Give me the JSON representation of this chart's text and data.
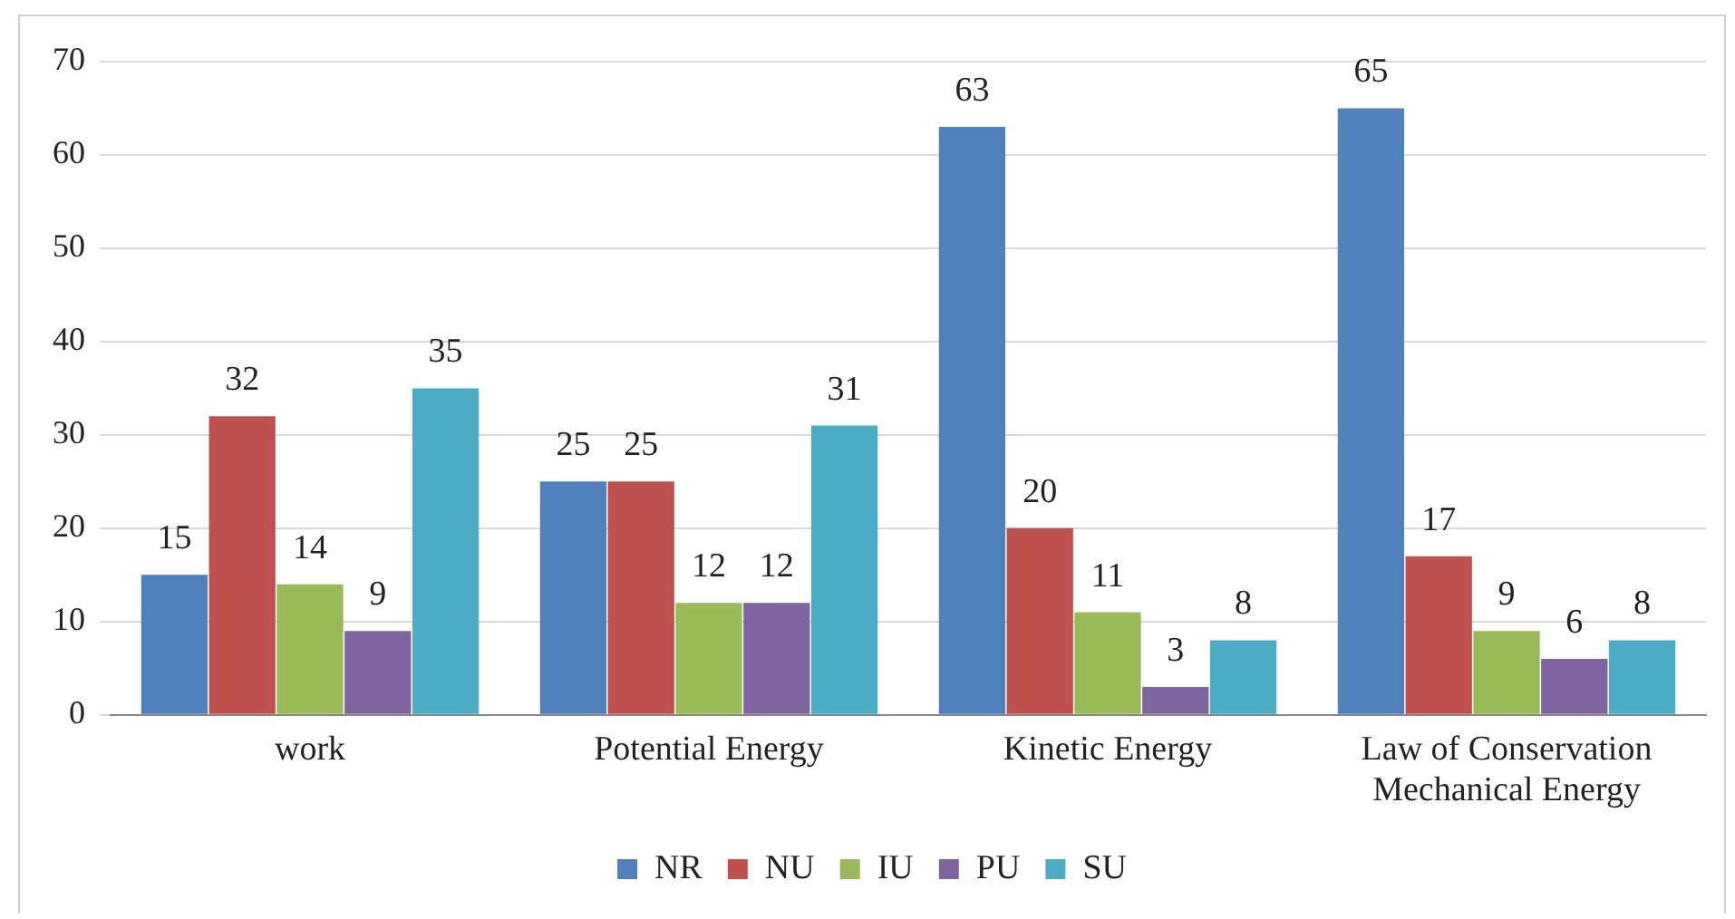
{
  "chart_data": {
    "type": "bar",
    "categories": [
      "work",
      "Potential Energy",
      "Kinetic Energy",
      "Law of Conservation Mechanical Energy"
    ],
    "series": [
      {
        "name": "NR",
        "color": "#4f81bd",
        "values": [
          15,
          25,
          63,
          65
        ]
      },
      {
        "name": "NU",
        "color": "#c0504d",
        "values": [
          32,
          25,
          20,
          17
        ]
      },
      {
        "name": "IU",
        "color": "#9bbb59",
        "values": [
          14,
          12,
          11,
          9
        ]
      },
      {
        "name": "PU",
        "color": "#8064a2",
        "values": [
          9,
          12,
          3,
          6
        ]
      },
      {
        "name": "SU",
        "color": "#4bacc6",
        "values": [
          35,
          31,
          8,
          8
        ]
      }
    ],
    "ylim": [
      0,
      70
    ],
    "yticks": [
      0,
      10,
      20,
      30,
      40,
      50,
      60,
      70
    ],
    "grid": "y",
    "legend": "bottom",
    "data_labels": true
  }
}
